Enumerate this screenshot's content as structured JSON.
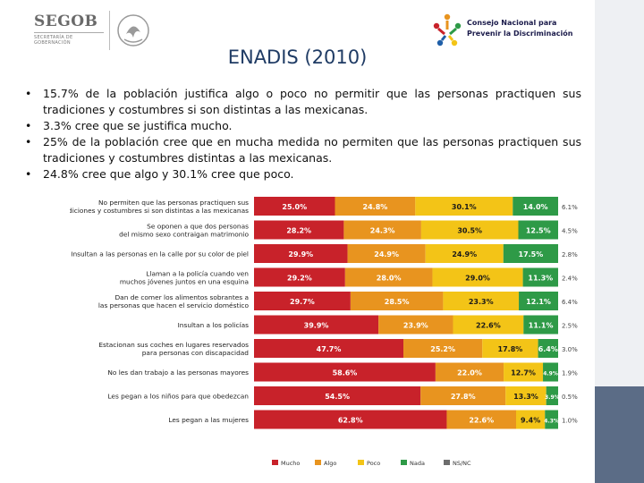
{
  "header": {
    "segob_name": "SEGOB",
    "segob_subtitle": "SECRETARÍA DE GOBERNACIÓN",
    "conapred_line1": "Consejo Nacional para",
    "conapred_line2": "Prevenir la Discriminación"
  },
  "title": "ENADIS (2010)",
  "bullets": [
    "15.7% de la población justifica algo o poco no permitir que las personas practiquen sus tradiciones y costumbres si son distintas a las mexicanas.",
    "3.3% cree que se justifica mucho.",
    "25% de la población cree que en mucha medida no permiten que las personas practiquen sus tradiciones y costumbres distintas a las mexicanas.",
    " 24.8% cree que algo y 30.1% cree que poco."
  ],
  "colors": {
    "mucho": "#c8222a",
    "algo": "#e8941f",
    "poco": "#f3c417",
    "nada": "#2e9a47",
    "nsnc": "#6d6d6d",
    "title": "#1f3b64",
    "sidebar": "#5b6c86"
  },
  "chart_data": {
    "type": "bar",
    "orientation": "horizontal-stacked",
    "series_names": [
      "Mucho",
      "Algo",
      "Poco",
      "Nada",
      "NS/NC"
    ],
    "rows": [
      {
        "label_lines": [
          "No permiten que las personas practiquen sus",
          "tradiciones y costumbres si son distintas a las mexicanas"
        ],
        "values": [
          25.0,
          24.8,
          30.1,
          14.0,
          6.1
        ],
        "labels": [
          "25.0%",
          "24.8%",
          "30.1%",
          "14.0%",
          "6.1%"
        ]
      },
      {
        "label_lines": [
          "Se oponen a que dos personas",
          "del mismo sexo contraigan matrimonio"
        ],
        "values": [
          28.2,
          24.3,
          30.5,
          12.5,
          4.5
        ],
        "labels": [
          "28.2%",
          "24.3%",
          "30.5%",
          "12.5%",
          "4.5%"
        ]
      },
      {
        "label_lines": [
          "Insultan a las personas en la calle por su color de piel"
        ],
        "values": [
          29.9,
          24.9,
          24.9,
          17.5,
          2.8
        ],
        "labels": [
          "29.9%",
          "24.9%",
          "24.9%",
          "17.5%",
          "2.8%"
        ]
      },
      {
        "label_lines": [
          "Llaman a la policía cuando ven",
          "muchos jóvenes juntos en una esquina"
        ],
        "values": [
          29.2,
          28.0,
          29.0,
          11.3,
          2.4
        ],
        "labels": [
          "29.2%",
          "28.0%",
          "29.0%",
          "11.3%",
          "2.4%"
        ]
      },
      {
        "label_lines": [
          "Dan de comer los alimentos sobrantes a",
          "las personas que hacen el servicio doméstico"
        ],
        "values": [
          29.7,
          28.5,
          23.3,
          12.1,
          6.4
        ],
        "labels": [
          "29.7%",
          "28.5%",
          "23.3%",
          "12.1%",
          "6.4%"
        ]
      },
      {
        "label_lines": [
          "Insultan a los policías"
        ],
        "values": [
          39.9,
          23.9,
          22.6,
          11.1,
          2.5
        ],
        "labels": [
          "39.9%",
          "23.9%",
          "22.6%",
          "11.1%",
          "2.5%"
        ]
      },
      {
        "label_lines": [
          "Estacionan sus coches en lugares reservados",
          "para personas con discapacidad"
        ],
        "values": [
          47.7,
          25.2,
          17.8,
          6.4,
          3.0
        ],
        "labels": [
          "47.7%",
          "25.2%",
          "17.8%",
          "6.4%",
          "3.0%"
        ]
      },
      {
        "label_lines": [
          "No les dan trabajo a las personas mayores"
        ],
        "values": [
          58.6,
          22.0,
          12.7,
          4.9,
          1.9
        ],
        "labels": [
          "58.6%",
          "22.0%",
          "12.7%",
          "4.9%",
          "1.9%"
        ]
      },
      {
        "label_lines": [
          "Les pegan a los niños para que obedezcan"
        ],
        "values": [
          54.5,
          27.8,
          13.3,
          3.9,
          0.5
        ],
        "labels": [
          "54.5%",
          "27.8%",
          "13.3%",
          "3.9%",
          "0.5%"
        ]
      },
      {
        "label_lines": [
          "Les pegan a las mujeres"
        ],
        "values": [
          62.8,
          22.6,
          9.4,
          4.3,
          1.0
        ],
        "labels": [
          "62.8%",
          "22.6%",
          "9.4%",
          "4.3%",
          "1.0%"
        ]
      }
    ],
    "legend": [
      "Mucho",
      "Algo",
      "Poco",
      "Nada",
      "NS/NC"
    ],
    "legend_position": "bottom"
  }
}
